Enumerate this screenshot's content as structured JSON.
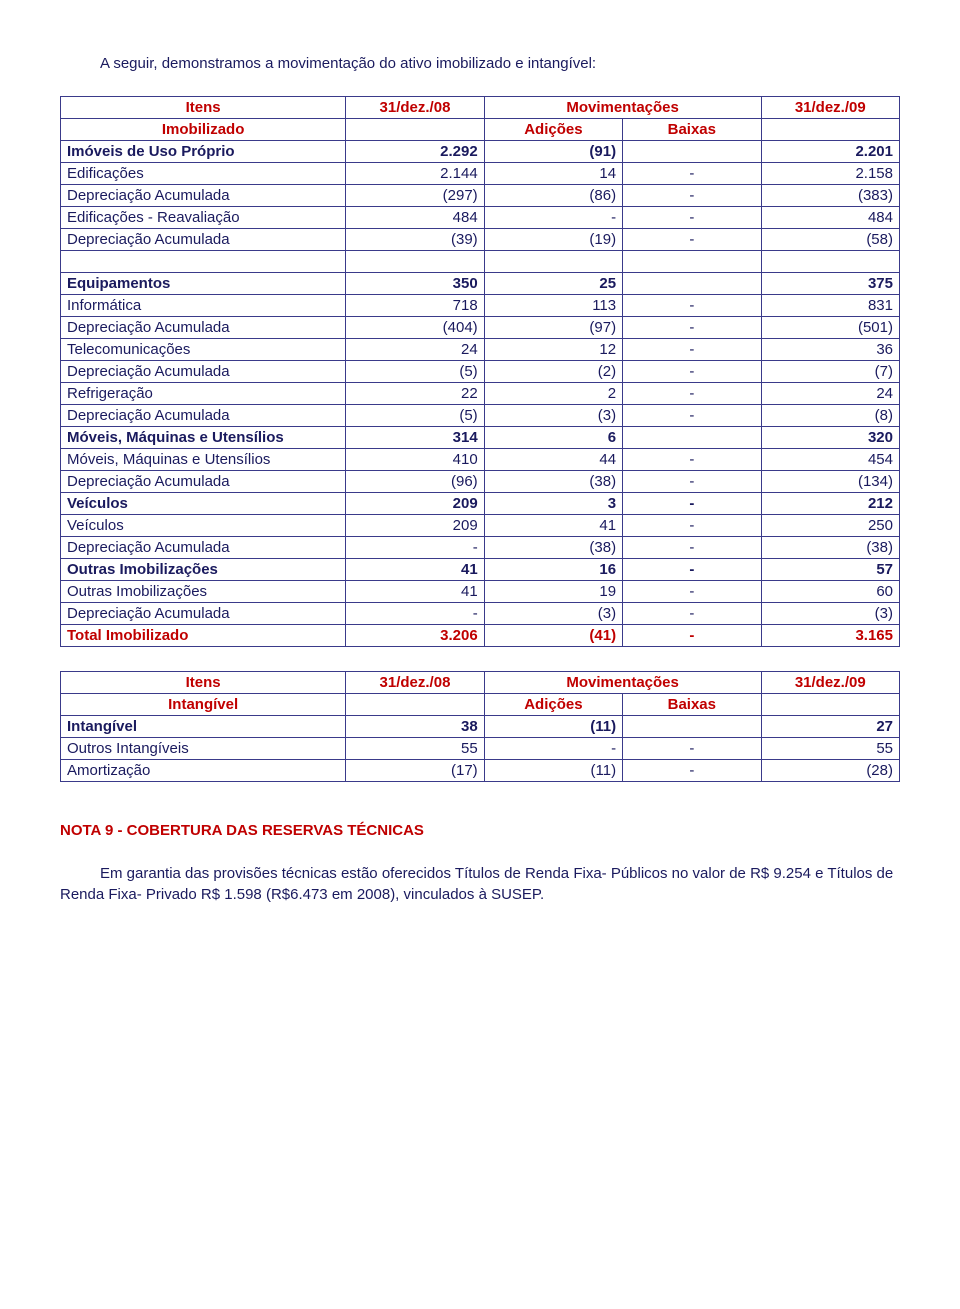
{
  "intro": "A seguir, demonstramos a movimentação do ativo imobilizado e intangível:",
  "table1": {
    "head": {
      "itens": "Itens",
      "col08": "31/dez./08",
      "mov": "Movimentações",
      "col09": "31/dez./09",
      "sub": "Imobilizado",
      "adicoes": "Adições",
      "baixas": "Baixas"
    },
    "rows": [
      {
        "bold": true,
        "label": "Imóveis de Uso Próprio",
        "c2": "2.292",
        "c3": "(91)",
        "c4": "",
        "c5": "2.201"
      },
      {
        "bold": false,
        "label": "Edificações",
        "c2": "2.144",
        "c3": "14",
        "c4": "-",
        "c5": "2.158"
      },
      {
        "bold": false,
        "label": "Depreciação Acumulada",
        "c2": "(297)",
        "c3": "(86)",
        "c4": "-",
        "c5": "(383)"
      },
      {
        "bold": false,
        "label": "Edificações - Reavaliação",
        "c2": "484",
        "c3": "-",
        "c4": "-",
        "c5": "484"
      },
      {
        "bold": false,
        "label": "Depreciação Acumulada",
        "c2": "(39)",
        "c3": "(19)",
        "c4": "-",
        "c5": "(58)"
      },
      {
        "bold": false,
        "label": "",
        "c2": "",
        "c3": "",
        "c4": "",
        "c5": ""
      },
      {
        "bold": true,
        "label": "Equipamentos",
        "c2": "350",
        "c3": "25",
        "c4": "",
        "c5": "375"
      },
      {
        "bold": false,
        "label": "Informática",
        "c2": "718",
        "c3": "113",
        "c4": "-",
        "c5": "831"
      },
      {
        "bold": false,
        "label": "Depreciação Acumulada",
        "c2": "(404)",
        "c3": "(97)",
        "c4": "-",
        "c5": "(501)"
      },
      {
        "bold": false,
        "label": "Telecomunicações",
        "c2": "24",
        "c3": "12",
        "c4": "-",
        "c5": "36"
      },
      {
        "bold": false,
        "label": "Depreciação Acumulada",
        "c2": "(5)",
        "c3": "(2)",
        "c4": "-",
        "c5": "(7)"
      },
      {
        "bold": false,
        "label": "Refrigeração",
        "c2": "22",
        "c3": "2",
        "c4": "-",
        "c5": "24"
      },
      {
        "bold": false,
        "label": "Depreciação Acumulada",
        "c2": "(5)",
        "c3": "(3)",
        "c4": "-",
        "c5": "(8)"
      },
      {
        "bold": true,
        "label": "Móveis, Máquinas e Utensílios",
        "c2": "314",
        "c3": "6",
        "c4": "",
        "c5": "320"
      },
      {
        "bold": false,
        "label": "Móveis, Máquinas e Utensílios",
        "c2": "410",
        "c3": "44",
        "c4": "-",
        "c5": "454"
      },
      {
        "bold": false,
        "label": "Depreciação Acumulada",
        "c2": "(96)",
        "c3": "(38)",
        "c4": "-",
        "c5": "(134)"
      },
      {
        "bold": true,
        "label": "Veículos",
        "c2": "209",
        "c3": "3",
        "c4": "-",
        "c5": "212"
      },
      {
        "bold": false,
        "label": "Veículos",
        "c2": "209",
        "c3": "41",
        "c4": "-",
        "c5": "250"
      },
      {
        "bold": false,
        "label": "Depreciação Acumulada",
        "c2": "-",
        "c3": "(38)",
        "c4": "-",
        "c5": "(38)"
      },
      {
        "bold": true,
        "label": "Outras Imobilizações",
        "c2": "41",
        "c3": "16",
        "c4": "-",
        "c5": "57"
      },
      {
        "bold": false,
        "label": "Outras Imobilizações",
        "c2": "41",
        "c3": "19",
        "c4": "-",
        "c5": "60"
      },
      {
        "bold": false,
        "label": "Depreciação Acumulada",
        "c2": "-",
        "c3": "(3)",
        "c4": "-",
        "c5": "(3)"
      },
      {
        "bold": true,
        "red": true,
        "label": "Total Imobilizado",
        "c2": "3.206",
        "c3": "(41)",
        "c4": "-",
        "c5": "3.165"
      }
    ]
  },
  "table2": {
    "head": {
      "itens": "Itens",
      "col08": "31/dez./08",
      "mov": "Movimentações",
      "col09": "31/dez./09",
      "sub": "Intangível",
      "adicoes": "Adições",
      "baixas": "Baixas"
    },
    "rows": [
      {
        "bold": true,
        "label": "Intangível",
        "c2": "38",
        "c3": "(11)",
        "c4": "",
        "c5": "27"
      },
      {
        "bold": false,
        "label": "Outros Intangíveis",
        "c2": "55",
        "c3": "-",
        "c4": "-",
        "c5": "55"
      },
      {
        "bold": false,
        "label": "Amortização",
        "c2": "(17)",
        "c3": "(11)",
        "c4": "-",
        "c5": "(28)"
      }
    ]
  },
  "section": {
    "title": "NOTA 9 - COBERTURA DAS RESERVAS TÉCNICAS",
    "body": "Em garantia das provisões técnicas estão oferecidos Títulos de Renda Fixa- Públicos no valor de R$ 9.254 e Títulos de Renda Fixa- Privado R$ 1.598 (R$6.473 em 2008), vinculados à SUSEP."
  }
}
